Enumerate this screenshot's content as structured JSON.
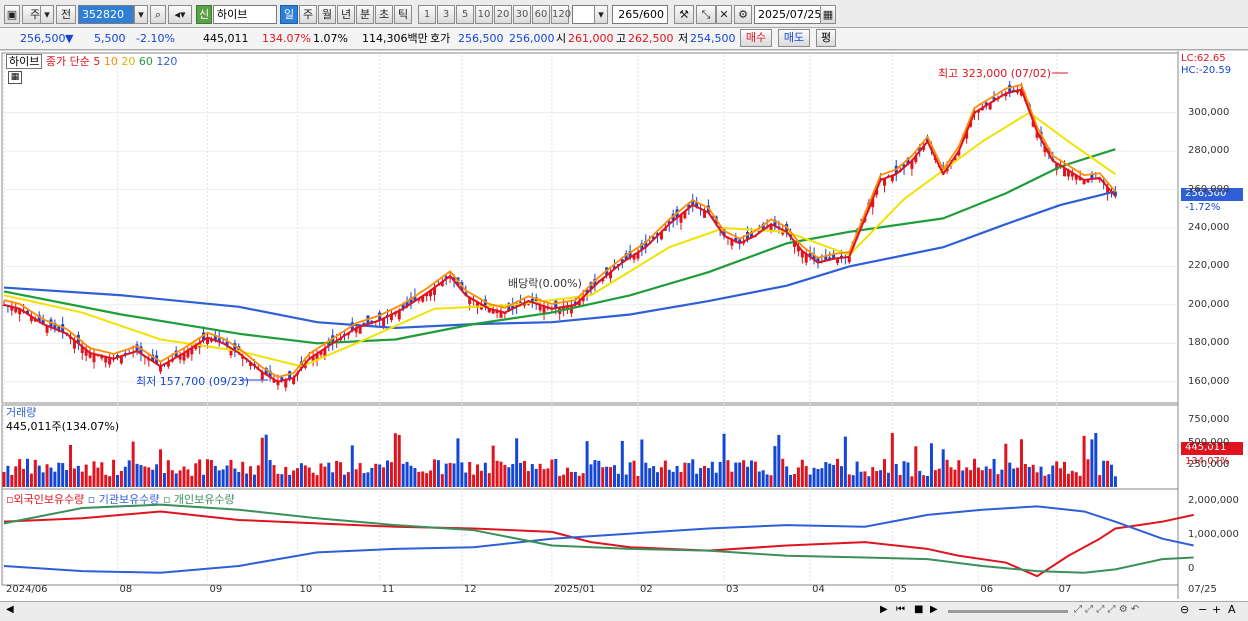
{
  "toolbar": {
    "market": "주",
    "prev": "전",
    "code": "352820",
    "badge": "신",
    "name": "하이브",
    "periods": [
      "일",
      "주",
      "월",
      "년",
      "분",
      "초",
      "틱"
    ],
    "active_period": "일",
    "intervals": [
      "1",
      "3",
      "5",
      "10",
      "20",
      "30",
      "60",
      "120"
    ],
    "count": "265",
    "count_total": "/600",
    "date": "2025/07/25"
  },
  "quote": {
    "price": "256,500",
    "change": "5,500",
    "change_pct": "-2.10%",
    "volume": "445,011",
    "volume_ratio": "134.07%",
    "turnover_pct": "1.07%",
    "amount": "114,306백만",
    "ask_label": "호가",
    "ask": "256,500",
    "bid": "256,000",
    "open_label": "시",
    "open": "261,000",
    "high_label": "고",
    "high": "262,500",
    "low_label": "저",
    "low": "254,500",
    "buy": "매수",
    "sell": "매도",
    "avg": "평"
  },
  "colors": {
    "up": "#e0141e",
    "down": "#1446d6",
    "ma5": "#e0141e",
    "ma10": "#ff8c00",
    "ma20": "#f2e200",
    "ma60": "#1f9d3a",
    "ma120": "#2f5fd6",
    "foreign": "#e0141e",
    "institution": "#2f5fd6",
    "individual": "#3a8f5a"
  },
  "price_pane": {
    "stock_label": "하이브",
    "indicator_label": "종가 단순",
    "ma_periods": [
      "5",
      "10",
      "20",
      "60",
      "120"
    ],
    "lc": "LC:62.65",
    "hc": "HC:-20.59",
    "high_annotation": "최고 323,000 (07/02)",
    "low_annotation": "최저 157,700 (09/23)",
    "dividend_annotation": "배당락(0.00%)",
    "current_tag": "256,500",
    "current_pct": "-1.72%"
  },
  "volume_pane": {
    "title": "거래량",
    "value": "445,011주(134.07%)",
    "tag": "445,011",
    "tag_pct": "134.07%"
  },
  "holdings_pane": {
    "legend": [
      "외국인보유수량",
      "기관보유수량",
      "개인보유수량"
    ]
  },
  "chart_data": {
    "type": "candlestick",
    "x": [
      "2024/06",
      "08",
      "09",
      "10",
      "11",
      "12",
      "2025/01",
      "02",
      "03",
      "04",
      "05",
      "06",
      "07",
      "07/25"
    ],
    "price_axis": [
      "300,000",
      "280,000",
      "260,000",
      "240,000",
      "220,000",
      "200,000",
      "180,000",
      "160,000"
    ],
    "price_range": [
      150000,
      330000
    ],
    "close_path": [
      [
        0,
        200000
      ],
      [
        4,
        198000
      ],
      [
        10,
        190000
      ],
      [
        16,
        185000
      ],
      [
        22,
        175000
      ],
      [
        28,
        172000
      ],
      [
        34,
        176000
      ],
      [
        40,
        168000
      ],
      [
        46,
        175000
      ],
      [
        52,
        183000
      ],
      [
        56,
        180000
      ],
      [
        60,
        175000
      ],
      [
        66,
        165000
      ],
      [
        70,
        160000
      ],
      [
        74,
        162000
      ],
      [
        78,
        172000
      ],
      [
        84,
        180000
      ],
      [
        90,
        188000
      ],
      [
        96,
        192000
      ],
      [
        102,
        198000
      ],
      [
        108,
        206000
      ],
      [
        114,
        215000
      ],
      [
        118,
        205000
      ],
      [
        124,
        198000
      ],
      [
        128,
        196000
      ],
      [
        134,
        202000
      ],
      [
        140,
        198000
      ],
      [
        146,
        200000
      ],
      [
        152,
        212000
      ],
      [
        158,
        222000
      ],
      [
        164,
        230000
      ],
      [
        170,
        242000
      ],
      [
        176,
        252000
      ],
      [
        180,
        248000
      ],
      [
        184,
        236000
      ],
      [
        188,
        232000
      ],
      [
        192,
        236000
      ],
      [
        196,
        242000
      ],
      [
        200,
        238000
      ],
      [
        204,
        228000
      ],
      [
        208,
        222000
      ],
      [
        212,
        224000
      ],
      [
        216,
        225000
      ],
      [
        220,
        245000
      ],
      [
        224,
        265000
      ],
      [
        228,
        268000
      ],
      [
        232,
        275000
      ],
      [
        236,
        285000
      ],
      [
        240,
        268000
      ],
      [
        244,
        280000
      ],
      [
        248,
        300000
      ],
      [
        252,
        305000
      ],
      [
        256,
        310000
      ],
      [
        260,
        312000
      ],
      [
        264,
        290000
      ],
      [
        268,
        275000
      ],
      [
        272,
        270000
      ],
      [
        276,
        265000
      ],
      [
        280,
        266000
      ],
      [
        284,
        256500
      ]
    ],
    "ma20_path": [
      [
        0,
        205000
      ],
      [
        20,
        196000
      ],
      [
        40,
        182000
      ],
      [
        60,
        176000
      ],
      [
        76,
        168000
      ],
      [
        90,
        180000
      ],
      [
        110,
        198000
      ],
      [
        130,
        200000
      ],
      [
        150,
        205000
      ],
      [
        170,
        230000
      ],
      [
        184,
        240000
      ],
      [
        200,
        238000
      ],
      [
        216,
        226000
      ],
      [
        230,
        255000
      ],
      [
        250,
        285000
      ],
      [
        262,
        300000
      ],
      [
        272,
        285000
      ],
      [
        284,
        268000
      ]
    ],
    "ma60_path": [
      [
        0,
        207000
      ],
      [
        30,
        195000
      ],
      [
        60,
        185000
      ],
      [
        80,
        180000
      ],
      [
        100,
        182000
      ],
      [
        120,
        190000
      ],
      [
        140,
        196000
      ],
      [
        160,
        205000
      ],
      [
        180,
        217000
      ],
      [
        200,
        232000
      ],
      [
        216,
        238000
      ],
      [
        240,
        245000
      ],
      [
        256,
        258000
      ],
      [
        270,
        272000
      ],
      [
        284,
        281000
      ]
    ],
    "ma120_path": [
      [
        0,
        209000
      ],
      [
        30,
        205000
      ],
      [
        60,
        199000
      ],
      [
        80,
        191000
      ],
      [
        100,
        188000
      ],
      [
        120,
        190000
      ],
      [
        140,
        191000
      ],
      [
        160,
        195000
      ],
      [
        180,
        202000
      ],
      [
        200,
        210000
      ],
      [
        216,
        220000
      ],
      [
        240,
        230000
      ],
      [
        256,
        242000
      ],
      [
        270,
        252000
      ],
      [
        284,
        259000
      ]
    ],
    "volume_axis": [
      "750,000",
      "500,000",
      "250,000"
    ],
    "volume_range": [
      0,
      900000
    ],
    "holdings_axis": [
      "2,000,000",
      "1,000,000",
      "0"
    ],
    "holdings_range": [
      -400000,
      2300000
    ],
    "foreign_path": [
      [
        0,
        1400000
      ],
      [
        20,
        1500000
      ],
      [
        40,
        1700000
      ],
      [
        60,
        1450000
      ],
      [
        80,
        1350000
      ],
      [
        100,
        1250000
      ],
      [
        120,
        1200000
      ],
      [
        140,
        1100000
      ],
      [
        150,
        800000
      ],
      [
        160,
        650000
      ],
      [
        180,
        550000
      ],
      [
        200,
        700000
      ],
      [
        220,
        800000
      ],
      [
        236,
        600000
      ],
      [
        244,
        400000
      ],
      [
        256,
        200000
      ],
      [
        264,
        -200000
      ],
      [
        272,
        400000
      ],
      [
        280,
        900000
      ],
      [
        284,
        1200000
      ],
      [
        296,
        1400000
      ],
      [
        304,
        1600000
      ]
    ],
    "institution_path": [
      [
        0,
        100000
      ],
      [
        20,
        -50000
      ],
      [
        40,
        -100000
      ],
      [
        60,
        100000
      ],
      [
        80,
        500000
      ],
      [
        100,
        600000
      ],
      [
        120,
        650000
      ],
      [
        140,
        900000
      ],
      [
        160,
        1050000
      ],
      [
        180,
        1200000
      ],
      [
        200,
        1300000
      ],
      [
        220,
        1250000
      ],
      [
        236,
        1600000
      ],
      [
        250,
        1750000
      ],
      [
        264,
        1850000
      ],
      [
        276,
        1700000
      ],
      [
        284,
        1400000
      ],
      [
        296,
        900000
      ],
      [
        304,
        700000
      ]
    ],
    "individual_path": [
      [
        0,
        1350000
      ],
      [
        20,
        1800000
      ],
      [
        40,
        1900000
      ],
      [
        60,
        1750000
      ],
      [
        80,
        1500000
      ],
      [
        100,
        1300000
      ],
      [
        120,
        1150000
      ],
      [
        140,
        700000
      ],
      [
        160,
        600000
      ],
      [
        180,
        550000
      ],
      [
        200,
        400000
      ],
      [
        220,
        350000
      ],
      [
        236,
        300000
      ],
      [
        250,
        100000
      ],
      [
        264,
        -50000
      ],
      [
        276,
        -100000
      ],
      [
        284,
        0
      ],
      [
        296,
        300000
      ],
      [
        304,
        350000
      ]
    ]
  }
}
